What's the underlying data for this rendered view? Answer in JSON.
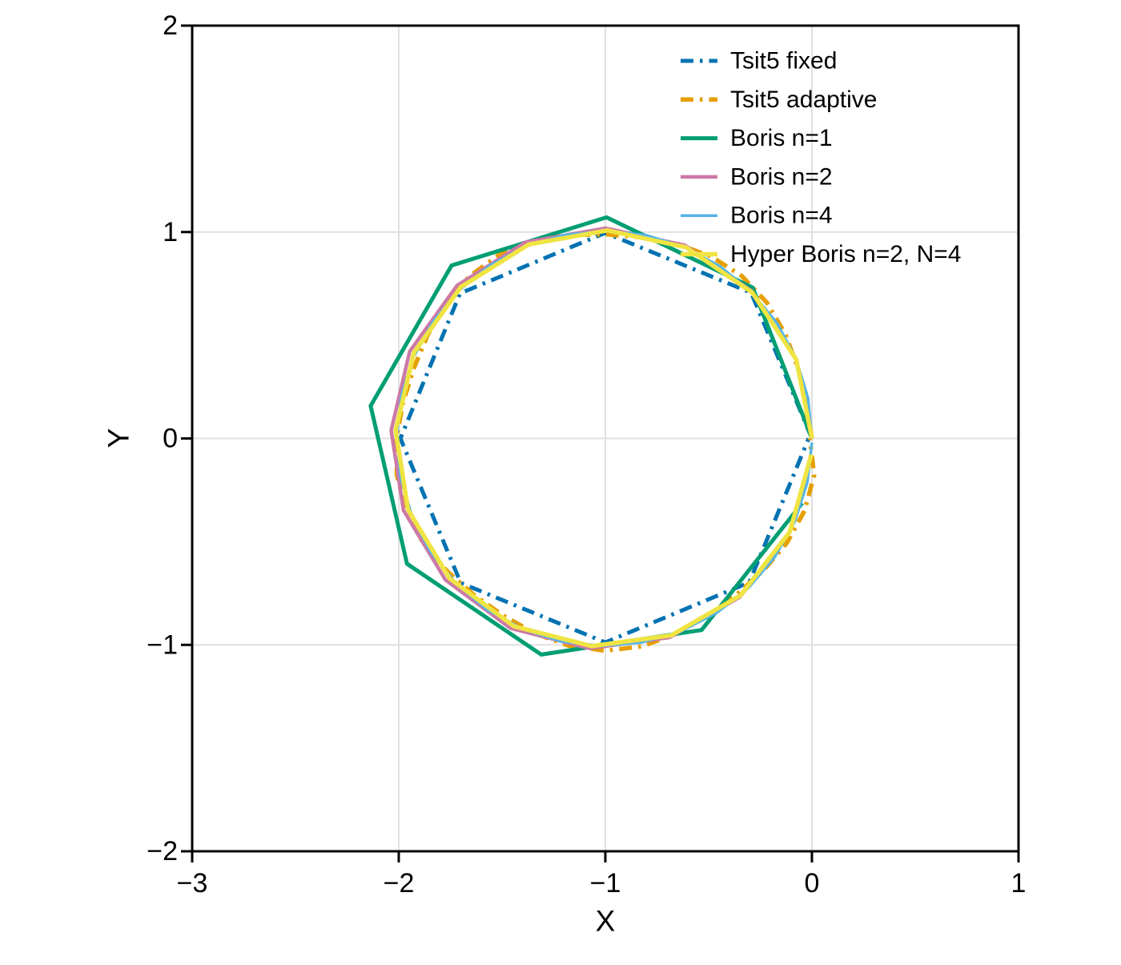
{
  "figure": {
    "background": "#ffffff",
    "grid_color": "#e0e0e0",
    "spine_color": "#000000",
    "tick_color": "#000000"
  },
  "chart_data": {
    "type": "line",
    "title": "",
    "xlabel": "X",
    "ylabel": "Y",
    "xlim": [
      -3,
      1
    ],
    "ylim": [
      -2,
      2
    ],
    "xticks": [
      -3,
      -2,
      -1,
      0,
      1
    ],
    "xtick_labels": [
      "−3",
      "−2",
      "−1",
      "0",
      "1"
    ],
    "yticks": [
      -2,
      -1,
      0,
      1,
      2
    ],
    "ytick_labels": [
      "−2",
      "−1",
      "0",
      "1",
      "2"
    ],
    "grid": true,
    "legend_position": "top-right",
    "legend_frame": false,
    "series": [
      {
        "name": "Tsit5 fixed",
        "color": "#0072B2",
        "style": "dashdot",
        "width": 5,
        "points": [
          [
            0,
            0
          ],
          [
            -0.294,
            0.706
          ],
          [
            -1.0,
            0.996
          ],
          [
            -1.703,
            0.703
          ],
          [
            -1.992,
            0.0
          ],
          [
            -1.7,
            -0.7
          ],
          [
            -1.0,
            -0.988
          ],
          [
            -0.303,
            -0.697
          ],
          [
            -0.016,
            0.0
          ]
        ]
      },
      {
        "name": "Tsit5 adaptive",
        "color": "#E69F00",
        "style": "dashdot",
        "width": 5.5,
        "points": [
          [
            0,
            0
          ],
          [
            -0.027,
            0.172
          ],
          [
            -0.067,
            0.339
          ],
          [
            -0.128,
            0.504
          ],
          [
            -0.217,
            0.657
          ],
          [
            -0.339,
            0.787
          ],
          [
            -0.49,
            0.883
          ],
          [
            -0.657,
            0.943
          ],
          [
            -0.828,
            0.975
          ],
          [
            -1.0,
            0.989
          ],
          [
            -1.174,
            0.985
          ],
          [
            -1.348,
            0.956
          ],
          [
            -1.514,
            0.89
          ],
          [
            -1.659,
            0.785
          ],
          [
            -1.774,
            0.65
          ],
          [
            -1.862,
            0.497
          ],
          [
            -1.928,
            0.338
          ],
          [
            -1.98,
            0.173
          ],
          [
            -2.011,
            0.0
          ],
          [
            -2.009,
            -0.178
          ],
          [
            -1.965,
            -0.351
          ],
          [
            -1.881,
            -0.509
          ],
          [
            -1.766,
            -0.643
          ],
          [
            -1.636,
            -0.758
          ],
          [
            -1.495,
            -0.858
          ],
          [
            -1.343,
            -0.943
          ],
          [
            -1.177,
            -1.004
          ],
          [
            -1.0,
            -1.028
          ],
          [
            -0.823,
            -1.007
          ],
          [
            -0.656,
            -0.946
          ],
          [
            -0.504,
            -0.859
          ],
          [
            -0.365,
            -0.757
          ],
          [
            -0.236,
            -0.641
          ],
          [
            -0.122,
            -0.507
          ],
          [
            -0.036,
            -0.351
          ],
          [
            0.011,
            -0.178
          ],
          [
            -0.01,
            0.0
          ]
        ]
      },
      {
        "name": "Boris n=1",
        "color": "#009E73",
        "style": "solid",
        "width": 5,
        "points": [
          [
            0,
            0
          ],
          [
            -0.287,
            0.731
          ],
          [
            -0.994,
            1.071
          ],
          [
            -1.744,
            0.838
          ],
          [
            -2.136,
            0.158
          ],
          [
            -1.96,
            -0.607
          ],
          [
            -1.31,
            -1.047
          ],
          [
            -0.534,
            -0.928
          ],
          [
            -0.047,
            -0.313
          ]
        ]
      },
      {
        "name": "Boris n=2",
        "color": "#CC79A7",
        "style": "solid",
        "width": 4.5,
        "points": [
          [
            0,
            0
          ],
          [
            -0.076,
            0.385
          ],
          [
            -0.291,
            0.714
          ],
          [
            -0.615,
            0.936
          ],
          [
            -0.999,
            1.019
          ],
          [
            -1.386,
            0.951
          ],
          [
            -1.718,
            0.741
          ],
          [
            -1.947,
            0.422
          ],
          [
            -2.037,
            0.039
          ],
          [
            -1.977,
            -0.348
          ],
          [
            -1.774,
            -0.685
          ],
          [
            -1.458,
            -0.92
          ],
          [
            -1.078,
            -1.017
          ],
          [
            -0.689,
            -0.964
          ],
          [
            -0.349,
            -0.768
          ],
          [
            -0.109,
            -0.457
          ],
          [
            -0.003,
            -0.079
          ]
        ]
      },
      {
        "name": "Boris n=4",
        "color": "#56B4E9",
        "style": "solid",
        "width": 3.5,
        "points": [
          [
            0,
            0
          ],
          [
            -0.019,
            0.195
          ],
          [
            -0.076,
            0.383
          ],
          [
            -0.168,
            0.557
          ],
          [
            -0.293,
            0.709
          ],
          [
            -0.444,
            0.833
          ],
          [
            -0.617,
            0.927
          ],
          [
            -0.804,
            0.985
          ],
          [
            -1.0,
            1.005
          ],
          [
            -1.195,
            0.986
          ],
          [
            -1.384,
            0.931
          ],
          [
            -1.557,
            0.839
          ],
          [
            -1.71,
            0.716
          ],
          [
            -1.835,
            0.565
          ],
          [
            -1.93,
            0.392
          ],
          [
            -1.988,
            0.205
          ],
          [
            -2.009,
            0.01
          ],
          [
            -1.992,
            -0.186
          ],
          [
            -1.937,
            -0.374
          ],
          [
            -1.846,
            -0.549
          ],
          [
            -1.724,
            -0.701
          ],
          [
            -1.574,
            -0.828
          ],
          [
            -1.401,
            -0.923
          ],
          [
            -1.214,
            -0.983
          ],
          [
            -1.019,
            -1.005
          ],
          [
            -0.824,
            -0.988
          ],
          [
            -0.635,
            -0.934
          ],
          [
            -0.46,
            -0.844
          ],
          [
            -0.306,
            -0.722
          ],
          [
            -0.179,
            -0.573
          ],
          [
            -0.083,
            -0.401
          ],
          [
            -0.023,
            -0.215
          ],
          [
            0.0,
            -0.02
          ]
        ]
      },
      {
        "name": "Hyper Boris n=2, N=4",
        "color": "#F0E442",
        "style": "solid",
        "width": 5.5,
        "points": [
          [
            0,
            0
          ],
          [
            -0.075,
            0.381
          ],
          [
            -0.288,
            0.706
          ],
          [
            -0.609,
            0.926
          ],
          [
            -0.989,
            1.008
          ],
          [
            -1.371,
            0.94
          ],
          [
            -1.7,
            0.733
          ],
          [
            -1.926,
            0.417
          ],
          [
            -2.015,
            0.039
          ],
          [
            -1.955,
            -0.345
          ],
          [
            -1.754,
            -0.678
          ],
          [
            -1.442,
            -0.91
          ],
          [
            -1.066,
            -1.006
          ],
          [
            -0.681,
            -0.954
          ],
          [
            -0.345,
            -0.76
          ],
          [
            -0.107,
            -0.452
          ],
          [
            -0.003,
            -0.078
          ]
        ]
      }
    ]
  }
}
